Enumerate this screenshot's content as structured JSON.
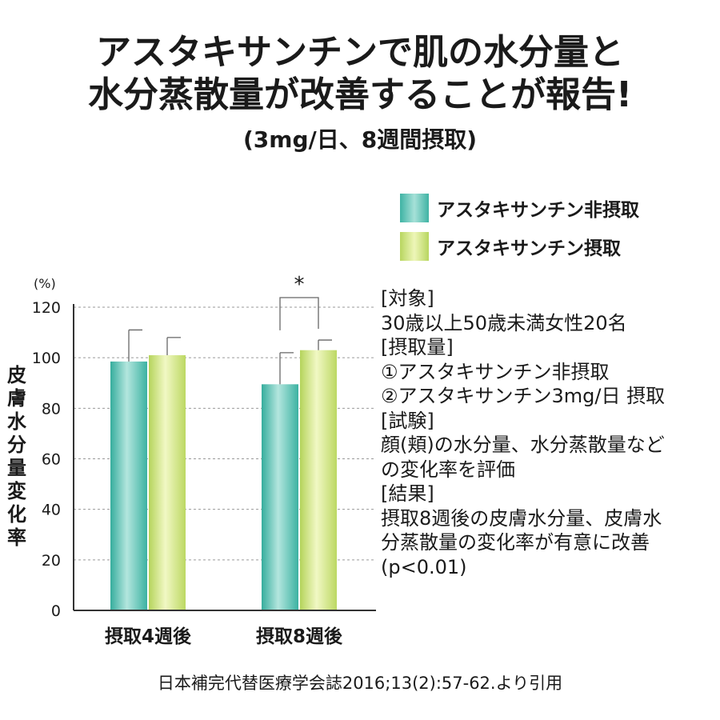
{
  "title_line1": "アスタキサンチンで肌の水分量と",
  "title_line2": "水分蒸散量が改善することが報告!",
  "subtitle": "(3mg/日、8週間摂取)",
  "legend": [
    {
      "label": "アスタキサンチン非摂取",
      "color": "#4fbfb0"
    },
    {
      "label": "アスタキサンチン摂取",
      "color": "#c8de6e"
    }
  ],
  "info_lines": [
    "[対象]",
    "30歳以上50歳未満女性20名",
    "[摂取量]",
    "①アスタキサンチン非摂取",
    "②アスタキサンチン3mg/日 摂取",
    "[試験]",
    "顔(頬)の水分量、水分蒸散量など",
    "の変化率を評価",
    "[結果]",
    "摂取8週後の皮膚水分量、皮膚水",
    "分蒸散量の変化率が有意に改善",
    "(p<0.01)"
  ],
  "source": "日本補完代替医療学会誌2016;13(2):57-62.より引用",
  "chart_data": {
    "type": "bar",
    "categories": [
      "摂取4週後",
      "摂取8週後"
    ],
    "series": [
      {
        "name": "アスタキサンチン非摂取",
        "values": [
          98.5,
          89.5
        ],
        "error": [
          12.5,
          12.5
        ]
      },
      {
        "name": "アスタキサンチン摂取",
        "values": [
          101,
          103
        ],
        "error": [
          7,
          4
        ]
      }
    ],
    "ylabel": "皮膚水分量変化率",
    "yunit": "(%)",
    "ylim": [
      0,
      120
    ],
    "yticks": [
      0,
      20,
      40,
      60,
      80,
      100,
      120
    ],
    "grid": true,
    "significance": {
      "category_index": 1,
      "label": "*"
    }
  }
}
